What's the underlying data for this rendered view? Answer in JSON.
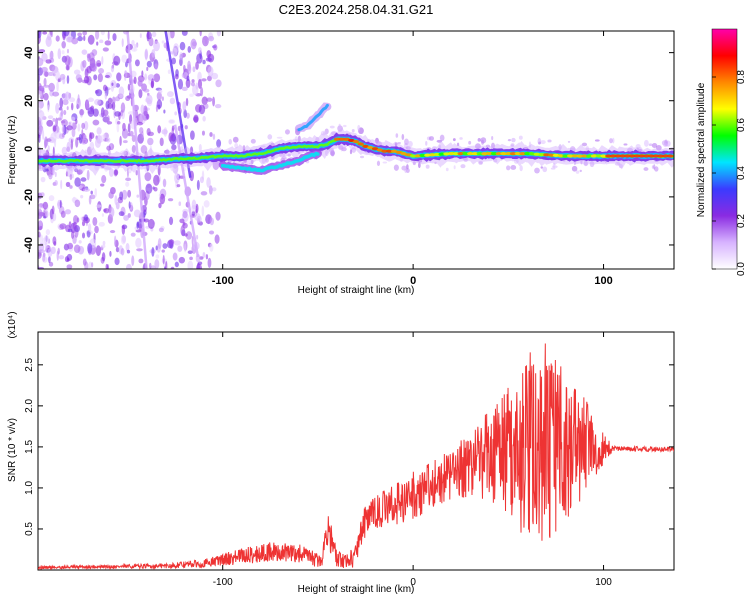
{
  "title": "C2E3.2024.258.04.31.G21",
  "colors": {
    "snr_line": "#ee3333",
    "colorbar_stops": [
      "#ffffff",
      "#d7b3ff",
      "#8a2be2",
      "#3b3bff",
      "#00e5ff",
      "#00ff00",
      "#ffff00",
      "#ff8800",
      "#ff0000",
      "#ff00aa"
    ]
  },
  "chart_data": [
    {
      "type": "heatmap",
      "name": "spectrogram",
      "xlabel": "Height of straight line (km)",
      "ylabel": "Frequency (Hz)",
      "xlim": [
        -197,
        137
      ],
      "ylim": [
        -50,
        49
      ],
      "xticks": [
        -100,
        0,
        100
      ],
      "xticklabels": [
        "-100",
        "0",
        "100"
      ],
      "yticks": [
        -40,
        -20,
        0,
        20,
        40
      ],
      "yticklabels": [
        "-40",
        "-20",
        "0",
        "20",
        "40"
      ],
      "colorbar": {
        "label": "Normalized spectral amplitude",
        "range": [
          0,
          1
        ],
        "ticks": [
          0,
          0.2,
          0.4,
          0.6,
          0.8
        ],
        "ticklabels": [
          "0.0",
          "0.2",
          "0.4",
          "0.6",
          "0.8"
        ]
      },
      "ridge": {
        "x": [
          -197,
          -180,
          -160,
          -140,
          -120,
          -115,
          -100,
          -90,
          -80,
          -70,
          -60,
          -50,
          -45,
          -40,
          -35,
          -30,
          -25,
          -20,
          -15,
          -10,
          -5,
          0,
          20,
          40,
          60,
          80,
          100,
          110,
          120,
          137
        ],
        "y": [
          -5,
          -5,
          -5,
          -5,
          -4,
          -4,
          -3,
          -3,
          -2,
          0,
          1,
          1,
          2,
          4,
          4,
          3,
          1,
          0,
          -1,
          -1,
          -2,
          -3,
          -2,
          -2,
          -2,
          -3,
          -3,
          -3,
          -3,
          -3
        ]
      },
      "lower_branch": {
        "x": [
          -100,
          -90,
          -80,
          -70,
          -60,
          -55,
          -50
        ],
        "y": [
          -7,
          -8,
          -9,
          -7,
          -5,
          -3,
          -2
        ]
      },
      "upper_branch": {
        "x": [
          -60,
          -55,
          -50,
          -45
        ],
        "y": [
          8,
          10,
          14,
          18
        ]
      }
    },
    {
      "type": "line",
      "name": "snr",
      "xlabel": "Height of straight line (km)",
      "ylabel": "SNR (10 * v/v)",
      "scale_label": "(x10⁴)",
      "xlim": [
        -197,
        137
      ],
      "ylim": [
        0,
        2.9
      ],
      "xticks": [
        -100,
        0,
        100
      ],
      "xticklabels": [
        "-100",
        "0",
        "100"
      ],
      "yticks": [
        0.5,
        1.0,
        1.5,
        2.0,
        2.5
      ],
      "yticklabels": [
        "0.5",
        "1.0",
        "1.5",
        "2.0",
        "2.5"
      ],
      "series": [
        {
          "envelope_x": [
            -197,
            -160,
            -130,
            -110,
            -90,
            -75,
            -60,
            -48,
            -45,
            -40,
            -35,
            -30,
            -28,
            -25,
            -20,
            -10,
            0,
            10,
            20,
            30,
            40,
            50,
            60,
            70,
            80,
            90,
            100,
            105,
            137
          ],
          "envelope_mean": [
            0.03,
            0.04,
            0.05,
            0.08,
            0.17,
            0.22,
            0.2,
            0.1,
            0.55,
            0.12,
            0.12,
            0.18,
            0.45,
            0.6,
            0.7,
            0.8,
            0.9,
            1.05,
            1.15,
            1.3,
            1.4,
            1.45,
            1.5,
            1.5,
            1.5,
            1.5,
            1.48,
            1.48,
            1.47
          ],
          "envelope_amp": [
            0.02,
            0.02,
            0.03,
            0.05,
            0.1,
            0.12,
            0.12,
            0.08,
            0.25,
            0.1,
            0.1,
            0.15,
            0.2,
            0.2,
            0.2,
            0.25,
            0.3,
            0.3,
            0.3,
            0.4,
            0.55,
            0.8,
            1.2,
            1.3,
            0.9,
            0.6,
            0.2,
            0.03,
            0.03
          ]
        }
      ]
    }
  ]
}
